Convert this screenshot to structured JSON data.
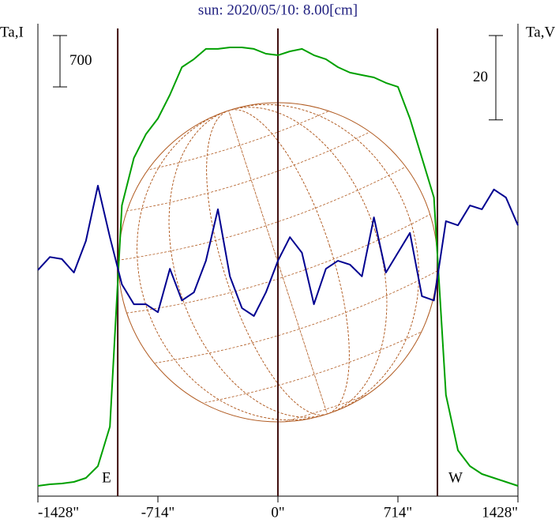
{
  "chart_data": {
    "type": "line",
    "title": "sun: 2020/05/10: 8.00[cm]",
    "y_label": "Ta,I",
    "y2_label": "Ta,V",
    "x": [
      -1428,
      -1356.6,
      -1285.2,
      -1213.8,
      -1142.4,
      -1071,
      -999.6,
      -928.2,
      -856.8,
      -785.4,
      -714,
      -642.6,
      -571.2,
      -499.8,
      -428.4,
      -357,
      -285.6,
      -214.2,
      -142.8,
      -71.4,
      0,
      71.4,
      142.8,
      214.2,
      285.6,
      357,
      428.4,
      499.8,
      571.2,
      642.6,
      714,
      785.4,
      856.8,
      928.2,
      999.6,
      1071,
      1142.4,
      1213.8,
      1285.2,
      1356.6,
      1428
    ],
    "series": [
      {
        "name": "Ta,I",
        "color": "#00a000",
        "values": [
          140,
          162,
          172,
          194,
          248,
          409,
          948,
          3963,
          4610,
          4933,
          5148,
          5471,
          5848,
          5956,
          6096,
          6096,
          6117,
          6117,
          6096,
          6031,
          6010,
          6063,
          6096,
          6010,
          5956,
          5848,
          5773,
          5740,
          5708,
          5633,
          5579,
          5148,
          4610,
          4071,
          1379,
          625,
          409,
          302,
          248,
          194,
          140
        ]
      },
      {
        "name": "Ta,V",
        "color": "#000090",
        "axis": "y2",
        "values": [
          -6.4,
          -3.3,
          -3.8,
          -7.0,
          0.5,
          13.6,
          1.4,
          -9.8,
          -14.5,
          -14.5,
          -16.4,
          -6.1,
          -13.6,
          -11.7,
          -4.2,
          8.0,
          -7.9,
          -15.4,
          -17.3,
          -11.7,
          -4.2,
          1.4,
          -2.3,
          -14.5,
          -6.1,
          -4.2,
          -5.1,
          -7.9,
          6.1,
          -7.0,
          -2.3,
          2.4,
          -12.6,
          -13.6,
          5.2,
          4.2,
          8.9,
          8.0,
          12.7,
          10.8,
          4.2
        ]
      }
    ],
    "xlim": [
      -1428,
      1428
    ],
    "xticks": [
      {
        "value": -1428,
        "label": "-1428\""
      },
      {
        "value": -714,
        "label": "-714\""
      },
      {
        "value": 0,
        "label": "0\""
      },
      {
        "value": 714,
        "label": "714\""
      },
      {
        "value": 1428,
        "label": "1428\""
      }
    ],
    "ylim": [
      0,
      6440
    ],
    "y2lim": [
      -60,
      52
    ],
    "scale_bars": [
      {
        "value": 700,
        "axis": "y"
      },
      {
        "value": 20,
        "axis": "y2"
      }
    ],
    "vlines": [
      {
        "value": -953,
        "label": "E"
      },
      {
        "value": 0
      },
      {
        "value": 949,
        "label": "W"
      }
    ]
  }
}
